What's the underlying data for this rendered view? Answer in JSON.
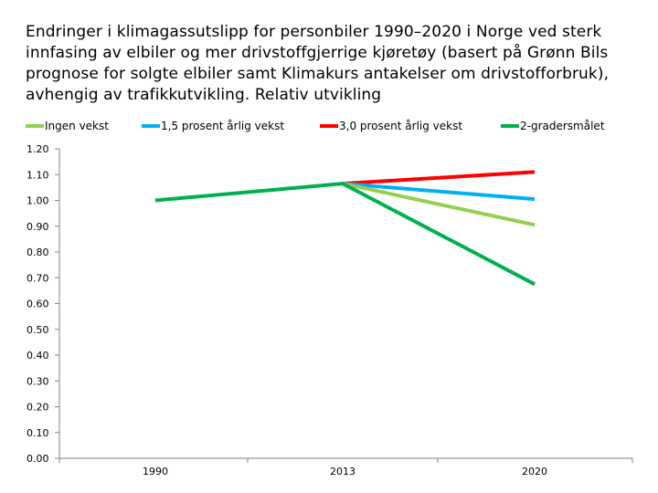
{
  "chart_data": {
    "type": "line",
    "title": "Endringer i klimagassutslipp for personbiler 1990–2020 i Norge ved sterk innfasing av elbiler og mer drivstoffgjerrige kjøretøy (basert på Grønn Bils prognose for solgte elbiler samt Klimakurs antakelser om drivstofforbruk), avhengig av trafikkutvikling. Relativ utvikling",
    "x": [
      "1990",
      "2013",
      "2020"
    ],
    "ylim": [
      0,
      1.2
    ],
    "yticks": [
      "0.00",
      "0.10",
      "0.20",
      "0.30",
      "0.40",
      "0.50",
      "0.60",
      "0.70",
      "0.80",
      "0.90",
      "1.00",
      "1.10",
      "1.20"
    ],
    "legend_position": "top",
    "grid": false,
    "series": [
      {
        "name": "Ingen vekst",
        "color": "#92d050",
        "x": [
          "2013",
          "2020"
        ],
        "values": [
          1.065,
          0.905
        ]
      },
      {
        "name": "1,5 prosent årlig vekst",
        "color": "#00b0f0",
        "x": [
          "2013",
          "2020"
        ],
        "values": [
          1.065,
          1.005
        ]
      },
      {
        "name": "3,0 prosent årlig vekst",
        "color": "#ff0000",
        "x": [
          "2013",
          "2020"
        ],
        "values": [
          1.065,
          1.11
        ]
      },
      {
        "name": "2-gradersmålet",
        "color": "#00b050",
        "x": [
          "1990",
          "2013",
          "2020"
        ],
        "values": [
          1.0,
          1.065,
          0.675
        ]
      }
    ]
  }
}
